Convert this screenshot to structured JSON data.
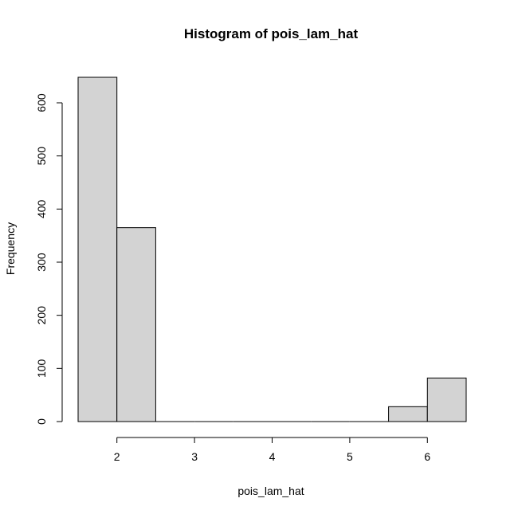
{
  "chart_data": {
    "type": "bar",
    "title": "Histogram of pois_lam_hat",
    "xlabel": "pois_lam_hat",
    "ylabel": "Frequency",
    "bins": [
      {
        "from": 1.5,
        "to": 2.0,
        "count": 648
      },
      {
        "from": 2.0,
        "to": 2.5,
        "count": 365
      },
      {
        "from": 2.5,
        "to": 3.0,
        "count": 0
      },
      {
        "from": 3.0,
        "to": 3.5,
        "count": 0
      },
      {
        "from": 3.5,
        "to": 4.0,
        "count": 0
      },
      {
        "from": 4.0,
        "to": 4.5,
        "count": 0
      },
      {
        "from": 4.5,
        "to": 5.0,
        "count": 0
      },
      {
        "from": 5.0,
        "to": 5.5,
        "count": 0
      },
      {
        "from": 5.5,
        "to": 6.0,
        "count": 28
      },
      {
        "from": 6.0,
        "to": 6.5,
        "count": 82
      }
    ],
    "xlim": [
      1.5,
      6.5
    ],
    "ylim": [
      0,
      648
    ],
    "x_ticks": [
      2,
      3,
      4,
      5,
      6
    ],
    "y_ticks": [
      0,
      100,
      200,
      300,
      400,
      500,
      600
    ],
    "bar_color": "#d3d3d3",
    "grid": false
  }
}
